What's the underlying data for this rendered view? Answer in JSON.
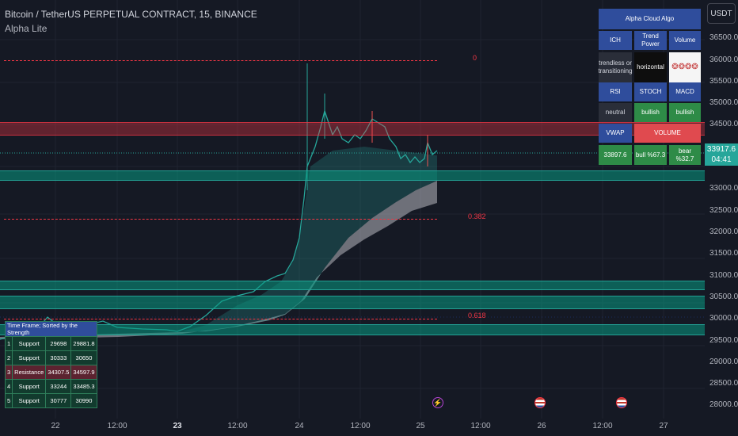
{
  "header": {
    "title": "Bitcoin / TetherUS PERPETUAL CONTRACT, 15, BINANCE",
    "indicator": "Alpha Lite"
  },
  "price_axis": {
    "currency": "USDT",
    "ticks": [
      "36500.0",
      "36000.0",
      "35500.0",
      "35000.0",
      "34500.0",
      "34000.0",
      "33500.0",
      "33000.0",
      "32500.0",
      "32000.0",
      "31500.0",
      "31000.0",
      "30500.0",
      "30000.0",
      "29500.0",
      "29000.0",
      "28500.0",
      "28000.0"
    ],
    "last_price": "33917.6",
    "countdown": "04:41"
  },
  "time_axis": {
    "ticks": [
      {
        "label": "22",
        "bold": false
      },
      {
        "label": "12:00",
        "bold": false
      },
      {
        "label": "23",
        "bold": true
      },
      {
        "label": "12:00",
        "bold": false
      },
      {
        "label": "24",
        "bold": false
      },
      {
        "label": "12:00",
        "bold": false
      },
      {
        "label": "25",
        "bold": false
      },
      {
        "label": "12:00",
        "bold": false
      },
      {
        "label": "26",
        "bold": false
      },
      {
        "label": "12:00",
        "bold": false
      },
      {
        "label": "27",
        "bold": false
      }
    ]
  },
  "fib_levels": [
    {
      "label": "0",
      "price": 35950
    },
    {
      "label": "0.382",
      "price": 32380
    },
    {
      "label": "0.618",
      "price": 30150
    }
  ],
  "zones": {
    "resistance": [
      {
        "low": 34300,
        "high": 34600
      }
    ],
    "support": [
      {
        "low": 33250,
        "high": 33480
      },
      {
        "low": 30770,
        "high": 30990
      },
      {
        "low": 30330,
        "high": 30650
      },
      {
        "low": 29700,
        "high": 29880
      }
    ]
  },
  "signal_panel": {
    "title": "Alpha Cloud Algo",
    "row1": [
      "ICH",
      "Trend Power",
      "Volume"
    ],
    "row2": [
      "trendless or transitioning",
      "horizontal",
      "❂❂❂❂"
    ],
    "row3": [
      "RSI",
      "STOCH",
      "MACD"
    ],
    "row4": [
      "neutral",
      "bullish",
      "bullish"
    ],
    "row5": [
      "VWAP",
      "VOLUME"
    ],
    "row6": [
      "33897.6",
      "bull %67.3",
      "bear %32.7"
    ]
  },
  "sr_table": {
    "header": "Time Frame; Sorted by the Strength",
    "rows": [
      {
        "n": "1",
        "type": "Support",
        "a": "29698",
        "b": "29881.8"
      },
      {
        "n": "2",
        "type": "Support",
        "a": "30333",
        "b": "30650"
      },
      {
        "n": "3",
        "type": "Resistance",
        "a": "34307.5",
        "b": "34597.9"
      },
      {
        "n": "4",
        "type": "Support",
        "a": "33244",
        "b": "33485.3"
      },
      {
        "n": "5",
        "type": "Support",
        "a": "30777",
        "b": "30990"
      }
    ]
  },
  "colors": {
    "background": "#151924",
    "up": "#26a69a",
    "down": "#ef5350",
    "fib": "#f23645",
    "cloud": "#b8b8c0"
  },
  "chart_data": {
    "type": "line",
    "symbol": "BTCUSDT.P",
    "interval": "15",
    "approx_path": [
      {
        "t": "22",
        "price": 29950
      },
      {
        "t": "22 12:00",
        "price": 29920
      },
      {
        "t": "23",
        "price": 29780
      },
      {
        "t": "23 12:00",
        "price": 30500
      },
      {
        "t": "23 18:00",
        "price": 31100
      },
      {
        "t": "24 00:00",
        "price": 33100
      },
      {
        "t": "24 06:00",
        "price": 34800
      },
      {
        "t": "24 12:00",
        "price": 34300
      },
      {
        "t": "24 18:00",
        "price": 34700
      },
      {
        "t": "25 00:00",
        "price": 33850
      },
      {
        "t": "25 04:00",
        "price": 33917.6
      }
    ]
  }
}
